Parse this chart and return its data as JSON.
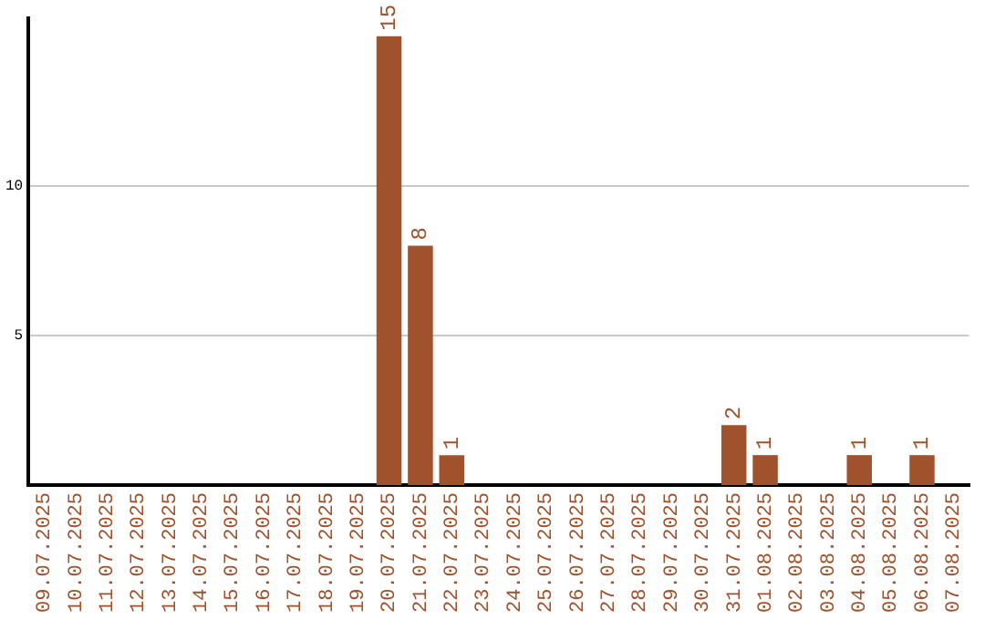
{
  "chart_data": {
    "type": "bar",
    "categories": [
      "09.07.2025",
      "10.07.2025",
      "11.07.2025",
      "12.07.2025",
      "13.07.2025",
      "14.07.2025",
      "15.07.2025",
      "16.07.2025",
      "17.07.2025",
      "18.07.2025",
      "19.07.2025",
      "20.07.2025",
      "21.07.2025",
      "22.07.2025",
      "23.07.2025",
      "24.07.2025",
      "25.07.2025",
      "26.07.2025",
      "27.07.2025",
      "28.07.2025",
      "29.07.2025",
      "30.07.2025",
      "31.07.2025",
      "01.08.2025",
      "02.08.2025",
      "03.08.2025",
      "04.08.2025",
      "05.08.2025",
      "06.08.2025",
      "07.08.2025"
    ],
    "values": [
      0,
      0,
      0,
      0,
      0,
      0,
      0,
      0,
      0,
      0,
      0,
      15,
      8,
      1,
      0,
      0,
      0,
      0,
      0,
      0,
      0,
      0,
      2,
      1,
      0,
      0,
      1,
      0,
      1,
      0
    ],
    "value_labels": [
      null,
      null,
      null,
      null,
      null,
      null,
      null,
      null,
      null,
      null,
      null,
      "15",
      "8",
      "1",
      null,
      null,
      null,
      null,
      null,
      null,
      null,
      null,
      "2",
      "1",
      null,
      null,
      "1",
      null,
      "1",
      null
    ],
    "color": "#a0522d",
    "ylim": [
      0,
      15.6
    ],
    "yticks": [
      5,
      10
    ],
    "grid": "y",
    "legend": false
  }
}
